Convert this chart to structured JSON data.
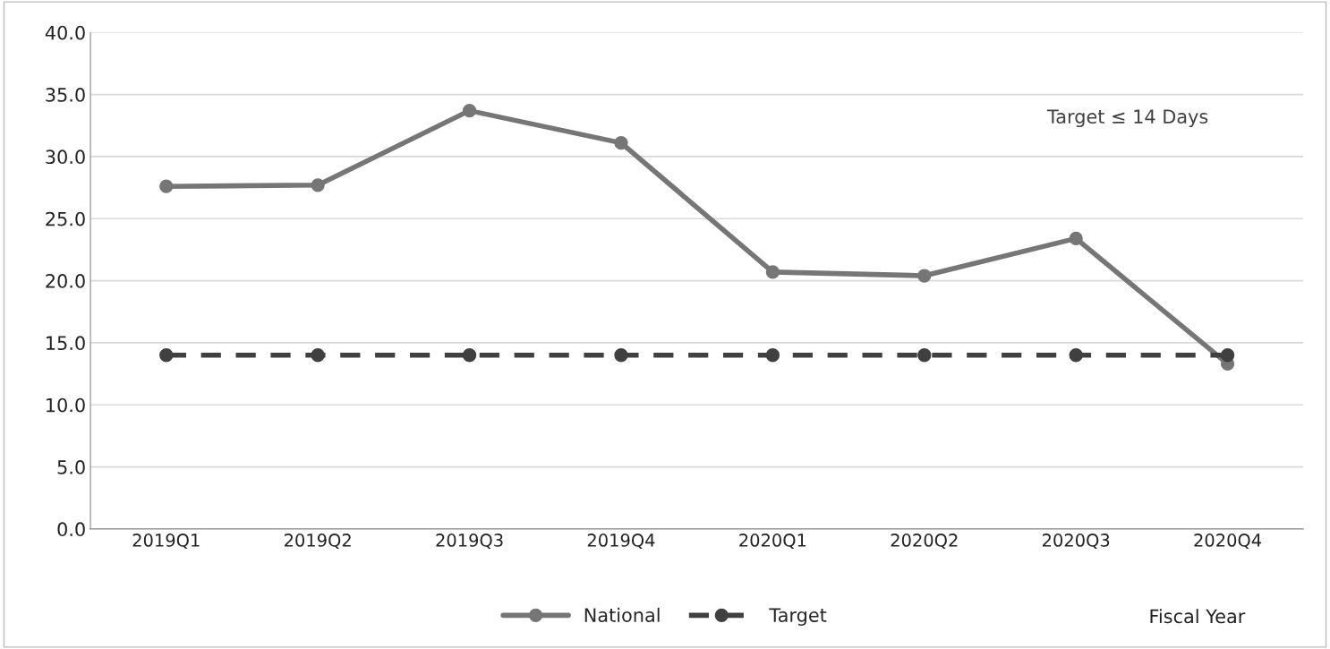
{
  "chart_data": {
    "type": "line",
    "categories": [
      "2019Q1",
      "2019Q2",
      "2019Q3",
      "2019Q4",
      "2020Q1",
      "2020Q2",
      "2020Q3",
      "2020Q4"
    ],
    "series": [
      {
        "name": "National",
        "color": "#767676",
        "line_style": "solid",
        "values": [
          27.6,
          27.7,
          33.7,
          31.1,
          20.7,
          20.4,
          23.4,
          13.3
        ]
      },
      {
        "name": "Target",
        "color": "#404040",
        "line_style": "dashed",
        "values": [
          14,
          14,
          14,
          14,
          14,
          14,
          14,
          14
        ]
      }
    ],
    "xlabel": "Fiscal Year",
    "annotations": [
      "Target ≤ 14 Days"
    ],
    "ylim": [
      0,
      40
    ],
    "yticks": [
      {
        "value": 0,
        "label": "0.0"
      },
      {
        "value": 5,
        "label": "5.0"
      },
      {
        "value": 10,
        "label": "10.0"
      },
      {
        "value": 15,
        "label": "15.0"
      },
      {
        "value": 20,
        "label": "20.0"
      },
      {
        "value": 25,
        "label": "25.0"
      },
      {
        "value": 30,
        "label": "30.0"
      },
      {
        "value": 35,
        "label": "35.0"
      },
      {
        "value": 40,
        "label": "40.0"
      }
    ],
    "grid": "y",
    "legend": "bottom",
    "marker": "circle"
  }
}
